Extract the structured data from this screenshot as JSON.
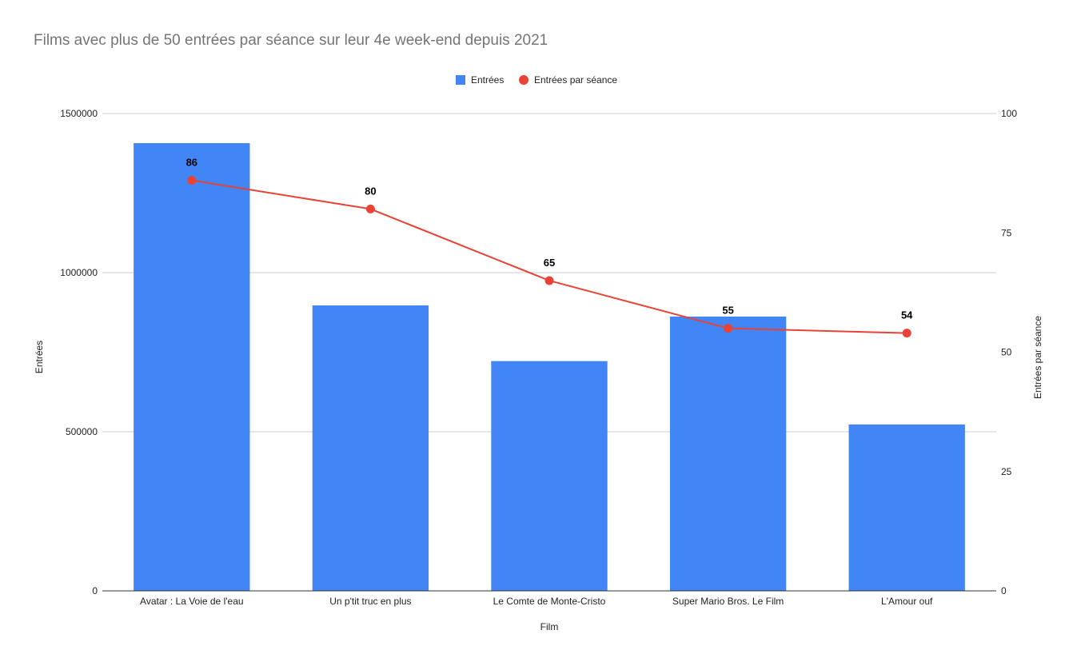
{
  "chart_data": {
    "type": "bar",
    "title": "Films avec plus de 50 entrées par séance sur leur 4e week-end depuis 2021",
    "xlabel": "Film",
    "ylabel": "Entrées",
    "y2label": "Entrées par séance",
    "categories": [
      "Avatar : La Voie de l'eau",
      "Un p'tit truc en plus",
      "Le Comte de Monte-Cristo",
      "Super Mario Bros. Le Film",
      "L'Amour ouf"
    ],
    "series": [
      {
        "name": "Entrées",
        "type": "bar",
        "axis": "left",
        "color": "#4285f4",
        "values": [
          1407000,
          897000,
          722000,
          862000,
          523000
        ]
      },
      {
        "name": "Entrées par séance",
        "type": "line",
        "axis": "right",
        "color": "#ea4335",
        "values": [
          86,
          80,
          65,
          55,
          54
        ],
        "labels": [
          "86",
          "80",
          "65",
          "55",
          "54"
        ]
      }
    ],
    "ylim": [
      0,
      1500000
    ],
    "y2lim": [
      0,
      100
    ],
    "yticks": [
      "0",
      "500000",
      "1000000",
      "1500000"
    ],
    "y2ticks": [
      "0",
      "25",
      "50",
      "75",
      "100"
    ],
    "grid": true,
    "legend": "top"
  }
}
